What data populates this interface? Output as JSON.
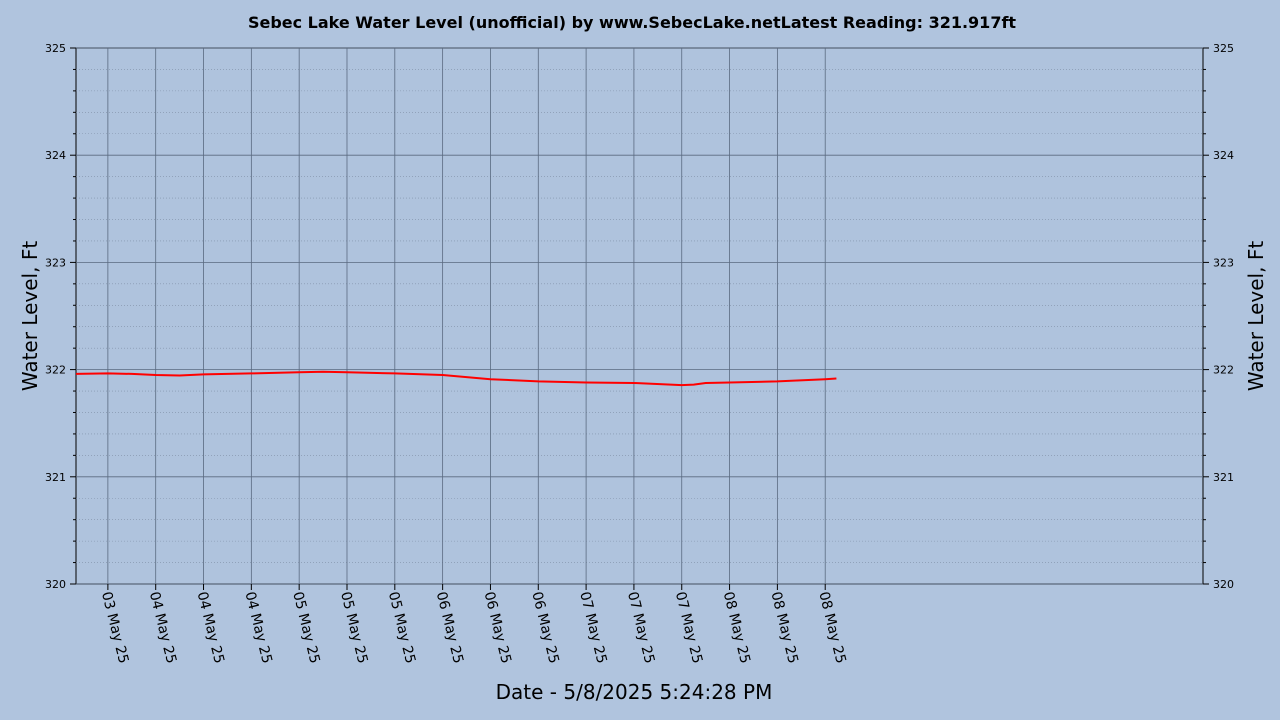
{
  "chart_data": {
    "type": "line",
    "title": "Sebec Lake Water Level (unofficial) by www.SebecLake.netLatest Reading: 321.917ft",
    "xlabel": "Date - 5/8/2025 5:24:28 PM",
    "ylabel": "Water Level, Ft",
    "ylabel_right": "Water Level, Ft",
    "ylim": [
      320,
      325
    ],
    "yticks": [
      320,
      321,
      322,
      323,
      324,
      325
    ],
    "xlim": [
      "2025-05-02 20:00",
      "2025-05-08 17:24"
    ],
    "xticks": [
      {
        "t": "2025-05-03 00:00",
        "label": "03 May 25"
      },
      {
        "t": "2025-05-03 06:00",
        "label": "04 May 25"
      },
      {
        "t": "2025-05-03 12:00",
        "label": "04 May 25"
      },
      {
        "t": "2025-05-03 18:00",
        "label": "04 May 25"
      },
      {
        "t": "2025-05-04 00:00",
        "label": "05 May 25"
      },
      {
        "t": "2025-05-04 06:00",
        "label": "05 May 25"
      },
      {
        "t": "2025-05-04 12:00",
        "label": "05 May 25"
      },
      {
        "t": "2025-05-04 18:00",
        "label": "06 May 25"
      },
      {
        "t": "2025-05-05 00:00",
        "label": "06 May 25"
      },
      {
        "t": "2025-05-05 06:00",
        "label": "06 May 25"
      },
      {
        "t": "2025-05-05 12:00",
        "label": "07 May 25"
      },
      {
        "t": "2025-05-05 18:00",
        "label": "07 May 25"
      },
      {
        "t": "2025-05-06 00:00",
        "label": "07 May 25"
      },
      {
        "t": "2025-05-06 06:00",
        "label": "08 May 25"
      },
      {
        "t": "2025-05-06 12:00",
        "label": "08 May 25"
      },
      {
        "t": "2025-05-06 18:00",
        "label": "08 May 25"
      }
    ],
    "grid": true,
    "series": [
      {
        "color": "#ff0000",
        "x": [
          "2025-05-02 20:00",
          "2025-05-03 00:00",
          "2025-05-03 03:00",
          "2025-05-03 06:00",
          "2025-05-03 09:00",
          "2025-05-03 12:00",
          "2025-05-03 18:00",
          "2025-05-04 00:00",
          "2025-05-04 03:00",
          "2025-05-04 06:00",
          "2025-05-04 12:00",
          "2025-05-04 18:00",
          "2025-05-05 00:00",
          "2025-05-05 06:00",
          "2025-05-05 12:00",
          "2025-05-05 18:00",
          "2025-05-06 00:00",
          "2025-05-06 01:30",
          "2025-05-06 03:00",
          "2025-05-06 06:00",
          "2025-05-06 12:00",
          "2025-05-06 18:00",
          "2025-05-06 19:24"
        ],
        "y": [
          321.96,
          321.965,
          321.96,
          321.95,
          321.945,
          321.955,
          321.965,
          321.975,
          321.98,
          321.975,
          321.965,
          321.95,
          321.91,
          321.89,
          321.88,
          321.875,
          321.855,
          321.86,
          321.875,
          321.88,
          321.89,
          321.91,
          321.917
        ]
      }
    ]
  }
}
